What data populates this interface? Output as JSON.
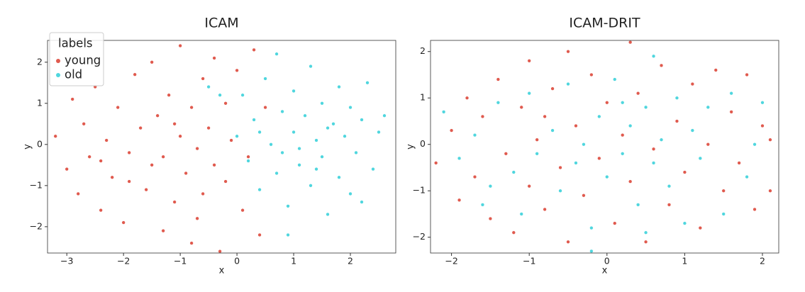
{
  "chart_data": [
    {
      "type": "scatter",
      "title": "ICAM",
      "x_label": "x",
      "y_label": "y",
      "legend": "upper left",
      "legend_title": "labels",
      "grid": false,
      "xlim": [
        -3.34,
        2.8
      ],
      "ylim": [
        -2.64,
        2.53
      ],
      "xticks": [
        {
          "value": -3,
          "label": "−3"
        },
        {
          "value": -2,
          "label": "−2"
        },
        {
          "value": -1,
          "label": "−1"
        },
        0,
        1,
        2
      ],
      "yticks": [
        {
          "value": -2,
          "label": "−2"
        },
        {
          "value": -1,
          "label": "−1"
        },
        0,
        1,
        2
      ],
      "series": [
        {
          "name": "young",
          "color": "#e05a4e",
          "x": [
            -3.2,
            -3.0,
            -2.9,
            -2.8,
            -2.7,
            -2.6,
            -2.5,
            -2.4,
            -2.3,
            -2.2,
            -2.1,
            -2.0,
            -1.9,
            -1.8,
            -1.7,
            -1.6,
            -1.5,
            -1.5,
            -1.4,
            -1.3,
            -1.3,
            -1.2,
            -1.1,
            -1.0,
            -1.0,
            -0.9,
            -0.8,
            -0.8,
            -0.7,
            -0.6,
            -0.6,
            -0.5,
            -0.4,
            -0.4,
            -0.3,
            -0.2,
            -0.2,
            -0.1,
            0.0,
            0.1,
            0.2,
            0.3,
            0.4,
            0.5,
            -1.9,
            -2.4,
            -1.1,
            -0.7
          ],
          "values": [
            0.2,
            -0.6,
            1.1,
            -1.2,
            0.5,
            -0.3,
            1.4,
            -1.6,
            0.1,
            -0.8,
            0.9,
            -1.9,
            -0.2,
            1.7,
            0.4,
            -1.1,
            2.0,
            -0.5,
            0.7,
            -2.1,
            -0.3,
            1.2,
            -1.4,
            0.2,
            2.4,
            -0.7,
            -2.4,
            0.9,
            -0.1,
            1.6,
            -1.2,
            0.4,
            -0.5,
            2.1,
            -2.6,
            1.0,
            -0.9,
            0.1,
            1.8,
            -1.6,
            -0.3,
            2.3,
            -2.2,
            0.9,
            -0.9,
            -0.4,
            0.5,
            -1.8
          ]
        },
        {
          "name": "old",
          "color": "#4fd6de",
          "x": [
            0.0,
            0.1,
            0.2,
            0.3,
            0.4,
            0.5,
            0.6,
            0.7,
            0.7,
            0.8,
            0.9,
            0.9,
            1.0,
            1.0,
            1.1,
            1.2,
            1.3,
            1.3,
            1.4,
            1.5,
            1.5,
            1.6,
            1.7,
            1.8,
            1.8,
            1.9,
            2.0,
            2.0,
            2.1,
            2.2,
            2.3,
            2.4,
            2.5,
            2.6,
            2.2,
            -0.3,
            -0.5,
            0.4,
            1.1,
            1.6,
            0.8,
            1.4
          ],
          "values": [
            0.2,
            1.2,
            -0.4,
            0.6,
            -1.1,
            1.6,
            0.0,
            -0.7,
            2.2,
            0.8,
            -1.5,
            -2.2,
            0.3,
            1.3,
            -0.5,
            0.7,
            -1.0,
            1.9,
            0.1,
            -0.3,
            1.0,
            -1.7,
            0.5,
            1.4,
            -0.8,
            0.2,
            -1.2,
            0.9,
            -0.2,
            0.6,
            1.5,
            -0.6,
            0.3,
            0.7,
            -1.4,
            1.2,
            1.4,
            0.3,
            -0.1,
            0.4,
            -0.2,
            -0.6
          ]
        }
      ]
    },
    {
      "type": "scatter",
      "title": "ICAM-DRIT",
      "x_label": "x",
      "y_label": "y",
      "grid": false,
      "xlim": [
        -2.27,
        2.21
      ],
      "ylim": [
        -2.34,
        2.24
      ],
      "xticks": [
        {
          "value": -2,
          "label": "−2"
        },
        {
          "value": -1,
          "label": "−1"
        },
        0,
        1,
        2
      ],
      "yticks": [
        {
          "value": -2,
          "label": "−2"
        },
        {
          "value": -1,
          "label": "−1"
        },
        0,
        1,
        2
      ],
      "series": [
        {
          "color": "#e05a4e",
          "x": [
            -2.2,
            -2.0,
            -1.9,
            -1.8,
            -1.7,
            -1.6,
            -1.5,
            -1.4,
            -1.3,
            -1.2,
            -1.1,
            -1.0,
            -1.0,
            -0.9,
            -0.8,
            -0.7,
            -0.6,
            -0.5,
            -0.5,
            -0.4,
            -0.3,
            -0.2,
            -0.1,
            0.0,
            0.1,
            0.2,
            0.3,
            0.3,
            0.4,
            0.5,
            0.6,
            0.7,
            0.8,
            0.9,
            1.0,
            1.1,
            1.2,
            1.3,
            1.4,
            1.5,
            1.6,
            1.7,
            1.8,
            1.9,
            2.0,
            2.1,
            2.1,
            -0.8
          ],
          "values": [
            -0.4,
            0.3,
            -1.2,
            1.0,
            -0.7,
            0.6,
            -1.6,
            1.4,
            -0.2,
            -1.9,
            0.8,
            1.8,
            -0.9,
            0.1,
            -1.4,
            1.2,
            -0.5,
            2.0,
            -2.1,
            0.4,
            -1.1,
            1.5,
            -0.3,
            0.9,
            -1.7,
            0.2,
            2.2,
            -0.8,
            1.1,
            -2.1,
            -0.1,
            1.7,
            -1.3,
            0.5,
            -0.6,
            1.3,
            -1.8,
            0.0,
            1.6,
            -1.0,
            0.7,
            -0.4,
            1.5,
            -1.4,
            0.4,
            -1.0,
            0.1,
            0.6
          ]
        },
        {
          "color": "#4fd6de",
          "x": [
            -2.1,
            -1.9,
            -1.7,
            -1.6,
            -1.4,
            -1.2,
            -1.1,
            -1.0,
            -0.9,
            -0.7,
            -0.6,
            -0.5,
            -0.4,
            -0.3,
            -0.2,
            -0.1,
            0.0,
            0.1,
            0.2,
            0.3,
            0.4,
            0.5,
            0.6,
            0.6,
            0.7,
            0.8,
            0.9,
            1.0,
            1.1,
            1.2,
            1.3,
            1.5,
            1.6,
            1.8,
            2.0,
            -0.2,
            0.2,
            -1.5,
            0.5,
            1.9
          ],
          "values": [
            0.7,
            -0.3,
            0.2,
            -1.3,
            0.9,
            -0.6,
            -1.5,
            1.1,
            -0.2,
            0.3,
            -1.0,
            1.3,
            -0.4,
            0.0,
            -1.8,
            0.6,
            -0.7,
            1.4,
            -0.2,
            0.4,
            -1.3,
            0.8,
            -0.4,
            1.9,
            0.1,
            -0.9,
            1.0,
            -1.7,
            0.3,
            -0.3,
            0.8,
            -1.5,
            1.1,
            -0.7,
            0.9,
            -2.3,
            0.9,
            -0.9,
            -1.9,
            0.0
          ]
        }
      ]
    }
  ]
}
